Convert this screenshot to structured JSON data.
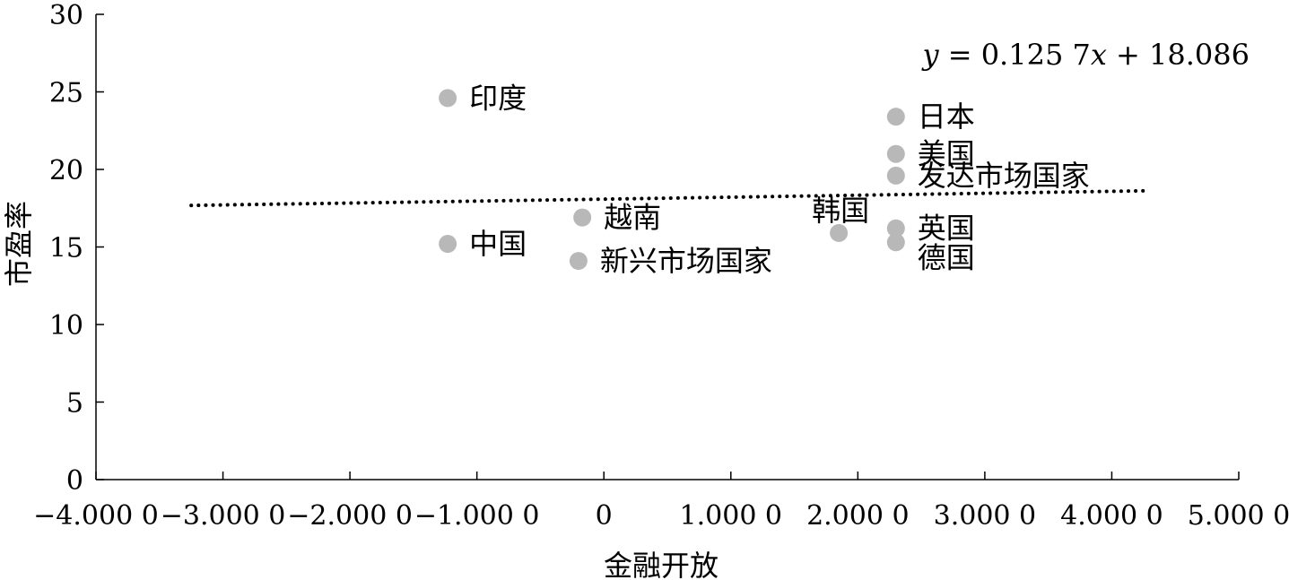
{
  "chart_data": {
    "type": "scatter",
    "title": "",
    "xlabel": "金融开放",
    "ylabel": "市盈率",
    "xlim": [
      -4,
      5
    ],
    "ylim": [
      0,
      30
    ],
    "x_ticks": [
      {
        "value": -4,
        "label": "−4.000 0"
      },
      {
        "value": -3,
        "label": "−3.000 0"
      },
      {
        "value": -2,
        "label": "−2.000 0"
      },
      {
        "value": -1,
        "label": "−1.000 0"
      },
      {
        "value": 0,
        "label": "0"
      },
      {
        "value": 1,
        "label": "1.000 0"
      },
      {
        "value": 2,
        "label": "2.000 0"
      },
      {
        "value": 3,
        "label": "3.000 0"
      },
      {
        "value": 4,
        "label": "4.000 0"
      },
      {
        "value": 5,
        "label": "5.000 0"
      }
    ],
    "y_ticks": [
      {
        "value": 0,
        "label": "0"
      },
      {
        "value": 5,
        "label": "5"
      },
      {
        "value": 10,
        "label": "10"
      },
      {
        "value": 15,
        "label": "15"
      },
      {
        "value": 20,
        "label": "20"
      },
      {
        "value": 25,
        "label": "25"
      },
      {
        "value": 30,
        "label": "30"
      }
    ],
    "points": [
      {
        "label": "印度",
        "x": -1.23,
        "y": 24.6,
        "label_pos": "right"
      },
      {
        "label": "中国",
        "x": -1.23,
        "y": 15.2,
        "label_pos": "right"
      },
      {
        "label": "越南",
        "x": -0.17,
        "y": 16.9,
        "label_pos": "right"
      },
      {
        "label": "新兴市场国家",
        "x": -0.2,
        "y": 14.1,
        "label_pos": "right"
      },
      {
        "label": "韩国",
        "x": 1.85,
        "y": 15.9,
        "label_pos": "above-left"
      },
      {
        "label": "日本",
        "x": 2.3,
        "y": 23.4,
        "label_pos": "right"
      },
      {
        "label": "美国",
        "x": 2.3,
        "y": 21.0,
        "label_pos": "right"
      },
      {
        "label": "发达市场国家",
        "x": 2.3,
        "y": 19.6,
        "label_pos": "right"
      },
      {
        "label": "英国",
        "x": 2.3,
        "y": 16.2,
        "label_pos": "right"
      },
      {
        "label": "德国",
        "x": 2.3,
        "y": 15.3,
        "label_pos": "right-below"
      }
    ],
    "trendline": {
      "slope": 0.1257,
      "intercept": 18.086,
      "x_range": [
        -3.25,
        4.3
      ],
      "style": "dotted",
      "equation": {
        "y": "y",
        "eq": " = 0.125 7",
        "x": "x",
        "rest": " + 18.086"
      }
    },
    "point_color": "#b8b8b8",
    "line_color": "#000000",
    "grid": false,
    "legend": "none"
  }
}
